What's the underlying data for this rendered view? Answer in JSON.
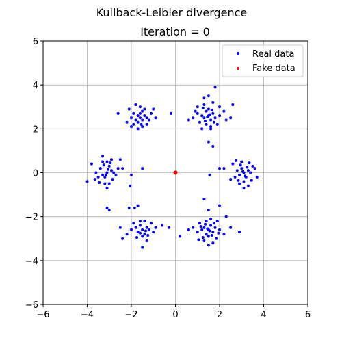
{
  "chart_data": {
    "type": "scatter",
    "title": "Kullback-Leibler divergence",
    "subtitle": "Iteration = 0",
    "xlabel": "",
    "ylabel": "",
    "xlim": [
      -6,
      6
    ],
    "ylim": [
      -6,
      6
    ],
    "xticks": [
      -6,
      -4,
      -2,
      0,
      2,
      4,
      6
    ],
    "yticks": [
      -6,
      -4,
      -2,
      0,
      2,
      4,
      6
    ],
    "grid": true,
    "legend_position": "top-right",
    "colors": {
      "real": "#0000ff",
      "fake": "#ff0000",
      "grid": "#b0b0b0"
    },
    "series": [
      {
        "name": "Real data",
        "color": "#0000ff",
        "clusters": [
          {
            "center": [
              1.5,
              2.6
            ],
            "points": [
              [
                1.5,
                2.6
              ],
              [
                1.3,
                2.5
              ],
              [
                1.7,
                2.7
              ],
              [
                1.4,
                2.8
              ],
              [
                1.6,
                2.4
              ],
              [
                1.2,
                2.6
              ],
              [
                1.8,
                2.5
              ],
              [
                1.5,
                2.9
              ],
              [
                1.0,
                2.7
              ],
              [
                2.0,
                2.6
              ],
              [
                1.3,
                3.1
              ],
              [
                1.7,
                3.2
              ],
              [
                1.4,
                2.2
              ],
              [
                1.6,
                2.1
              ],
              [
                0.8,
                2.5
              ],
              [
                2.2,
                2.8
              ],
              [
                1.5,
                3.5
              ],
              [
                1.8,
                3.9
              ],
              [
                1.1,
                2.3
              ],
              [
                1.9,
                2.2
              ],
              [
                0.6,
                2.4
              ],
              [
                2.5,
                2.5
              ],
              [
                1.5,
                1.4
              ],
              [
                1.7,
                1.2
              ],
              [
                2.6,
                3.1
              ],
              [
                1.3,
                3.4
              ],
              [
                1.0,
                3.0
              ],
              [
                2.0,
                3.0
              ],
              [
                1.6,
                2.0
              ],
              [
                1.45,
                2.55
              ],
              [
                1.55,
                2.65
              ],
              [
                1.35,
                2.35
              ],
              [
                1.65,
                2.85
              ],
              [
                1.25,
                2.95
              ],
              [
                1.75,
                2.3
              ],
              [
                2.3,
                2.4
              ],
              [
                0.9,
                2.8
              ],
              [
                1.2,
                2.0
              ]
            ]
          },
          {
            "center": [
              -1.6,
              2.5
            ],
            "points": [
              [
                -1.6,
                2.5
              ],
              [
                -1.4,
                2.6
              ],
              [
                -1.8,
                2.4
              ],
              [
                -1.5,
                2.8
              ],
              [
                -1.7,
                2.3
              ],
              [
                -1.3,
                2.5
              ],
              [
                -1.9,
                2.7
              ],
              [
                -1.6,
                3.0
              ],
              [
                -1.2,
                2.4
              ],
              [
                -2.0,
                2.5
              ],
              [
                -1.5,
                2.1
              ],
              [
                -1.7,
                2.0
              ],
              [
                -1.8,
                3.1
              ],
              [
                -1.1,
                2.7
              ],
              [
                -2.1,
                2.9
              ],
              [
                -0.9,
                2.5
              ],
              [
                -2.2,
                2.3
              ],
              [
                -1.4,
                2.9
              ],
              [
                -1.3,
                2.2
              ],
              [
                -2.6,
                2.7
              ],
              [
                -0.2,
                2.7
              ],
              [
                -1.6,
                2.7
              ],
              [
                -1.5,
                2.4
              ],
              [
                -1.7,
                2.6
              ],
              [
                -1.55,
                2.2
              ],
              [
                -1.9,
                2.2
              ],
              [
                -1.0,
                2.9
              ],
              [
                -2.0,
                2.1
              ]
            ]
          },
          {
            "center": [
              3.1,
              -0.05
            ],
            "points": [
              [
                3.1,
                0.0
              ],
              [
                2.9,
                -0.1
              ],
              [
                3.3,
                0.1
              ],
              [
                3.0,
                0.2
              ],
              [
                3.2,
                -0.2
              ],
              [
                2.8,
                0.1
              ],
              [
                3.4,
                0.0
              ],
              [
                3.1,
                -0.4
              ],
              [
                2.7,
                -0.2
              ],
              [
                3.5,
                0.3
              ],
              [
                3.0,
                0.5
              ],
              [
                2.9,
                -0.5
              ],
              [
                3.3,
                -0.6
              ],
              [
                2.6,
                0.4
              ],
              [
                3.6,
                0.2
              ],
              [
                3.1,
                -0.7
              ],
              [
                2.2,
                0.2
              ],
              [
                2.0,
                0.2
              ],
              [
                3.7,
                -0.2
              ],
              [
                2.5,
                -0.3
              ],
              [
                3.05,
                0.05
              ],
              [
                3.15,
                -0.15
              ],
              [
                2.95,
                0.35
              ],
              [
                3.25,
                0.25
              ],
              [
                2.85,
                -0.35
              ],
              [
                3.45,
                -0.35
              ],
              [
                2.75,
                0.55
              ],
              [
                3.35,
                0.45
              ]
            ]
          },
          {
            "center": [
              -3.1,
              0.05
            ],
            "points": [
              [
                -3.1,
                0.0
              ],
              [
                -2.9,
                0.1
              ],
              [
                -3.3,
                -0.1
              ],
              [
                -3.0,
                0.3
              ],
              [
                -3.2,
                -0.2
              ],
              [
                -2.8,
                0.0
              ],
              [
                -3.4,
                0.2
              ],
              [
                -3.1,
                0.5
              ],
              [
                -2.7,
                -0.1
              ],
              [
                -3.5,
                -0.2
              ],
              [
                -3.0,
                -0.5
              ],
              [
                -2.9,
                0.6
              ],
              [
                -3.3,
                0.5
              ],
              [
                -2.6,
                0.2
              ],
              [
                -3.6,
                0.0
              ],
              [
                -3.1,
                -0.7
              ],
              [
                -3.8,
                0.4
              ],
              [
                -4.0,
                -0.4
              ],
              [
                -2.4,
                0.2
              ],
              [
                -2.0,
                -0.1
              ],
              [
                -1.5,
                0.2
              ],
              [
                -3.0,
                -1.7
              ],
              [
                -3.1,
                -1.6
              ],
              [
                -3.3,
                0.75
              ],
              [
                -2.5,
                0.6
              ],
              [
                -3.05,
                0.15
              ],
              [
                -3.15,
                -0.1
              ],
              [
                -2.85,
                -0.3
              ],
              [
                -3.25,
                0.35
              ],
              [
                -3.45,
                -0.45
              ],
              [
                -3.65,
                -0.3
              ],
              [
                -2.95,
                0.45
              ],
              [
                -3.2,
                -0.5
              ]
            ]
          },
          {
            "center": [
              -1.5,
              -2.6
            ],
            "points": [
              [
                -1.5,
                -2.6
              ],
              [
                -1.3,
                -2.5
              ],
              [
                -1.7,
                -2.7
              ],
              [
                -1.4,
                -2.8
              ],
              [
                -1.6,
                -2.4
              ],
              [
                -1.2,
                -2.6
              ],
              [
                -1.8,
                -2.5
              ],
              [
                -1.5,
                -2.9
              ],
              [
                -1.0,
                -2.7
              ],
              [
                -2.0,
                -2.6
              ],
              [
                -1.3,
                -3.1
              ],
              [
                -1.4,
                -2.2
              ],
              [
                -1.6,
                -2.2
              ],
              [
                -0.9,
                -2.5
              ],
              [
                -2.2,
                -2.8
              ],
              [
                -1.5,
                -3.4
              ],
              [
                -1.1,
                -2.3
              ],
              [
                -1.9,
                -2.3
              ],
              [
                -2.4,
                -3.0
              ],
              [
                -0.6,
                -2.4
              ],
              [
                -2.5,
                -2.5
              ],
              [
                -1.7,
                -1.5
              ],
              [
                -1.85,
                -1.6
              ],
              [
                -2.1,
                -1.6
              ],
              [
                -2.05,
                -0.6
              ],
              [
                -1.6,
                -2.75
              ],
              [
                -1.35,
                -2.65
              ],
              [
                -1.25,
                -2.85
              ],
              [
                -1.75,
                -2.95
              ],
              [
                -0.3,
                -2.5
              ]
            ]
          },
          {
            "center": [
              1.5,
              -2.6
            ],
            "points": [
              [
                1.5,
                -2.6
              ],
              [
                1.3,
                -2.5
              ],
              [
                1.7,
                -2.7
              ],
              [
                1.4,
                -2.8
              ],
              [
                1.6,
                -2.4
              ],
              [
                1.2,
                -2.6
              ],
              [
                1.8,
                -2.5
              ],
              [
                1.5,
                -2.9
              ],
              [
                1.0,
                -2.7
              ],
              [
                2.0,
                -2.6
              ],
              [
                1.3,
                -3.1
              ],
              [
                1.7,
                -3.2
              ],
              [
                1.4,
                -2.2
              ],
              [
                1.6,
                -2.1
              ],
              [
                0.8,
                -2.5
              ],
              [
                2.2,
                -2.8
              ],
              [
                1.5,
                -3.3
              ],
              [
                1.1,
                -2.3
              ],
              [
                1.9,
                -2.2
              ],
              [
                2.5,
                -2.5
              ],
              [
                2.3,
                -2.0
              ],
              [
                2.0,
                -1.5
              ],
              [
                1.5,
                -1.7
              ],
              [
                1.3,
                -1.2
              ],
              [
                1.55,
                -0.1
              ],
              [
                2.9,
                -2.7
              ],
              [
                0.2,
                -2.9
              ],
              [
                0.6,
                -2.6
              ],
              [
                1.45,
                -2.55
              ],
              [
                1.55,
                -2.65
              ],
              [
                1.35,
                -2.35
              ],
              [
                1.65,
                -2.85
              ],
              [
                1.25,
                -2.95
              ],
              [
                1.75,
                -2.3
              ],
              [
                1.85,
                -3.0
              ],
              [
                1.15,
                -2.45
              ],
              [
                1.95,
                -2.75
              ],
              [
                1.05,
                -3.05
              ]
            ]
          }
        ]
      },
      {
        "name": "Fake data",
        "color": "#ff0000",
        "clusters": [
          {
            "center": [
              0,
              0
            ],
            "points": [
              [
                0.0,
                0.0
              ],
              [
                0.02,
                0.01
              ],
              [
                -0.02,
                0.02
              ],
              [
                0.01,
                -0.02
              ],
              [
                -0.01,
                -0.01
              ],
              [
                0.03,
                0.0
              ],
              [
                0.0,
                0.03
              ],
              [
                -0.03,
                0.0
              ],
              [
                0.0,
                -0.03
              ],
              [
                0.02,
                0.03
              ]
            ]
          }
        ]
      }
    ]
  }
}
